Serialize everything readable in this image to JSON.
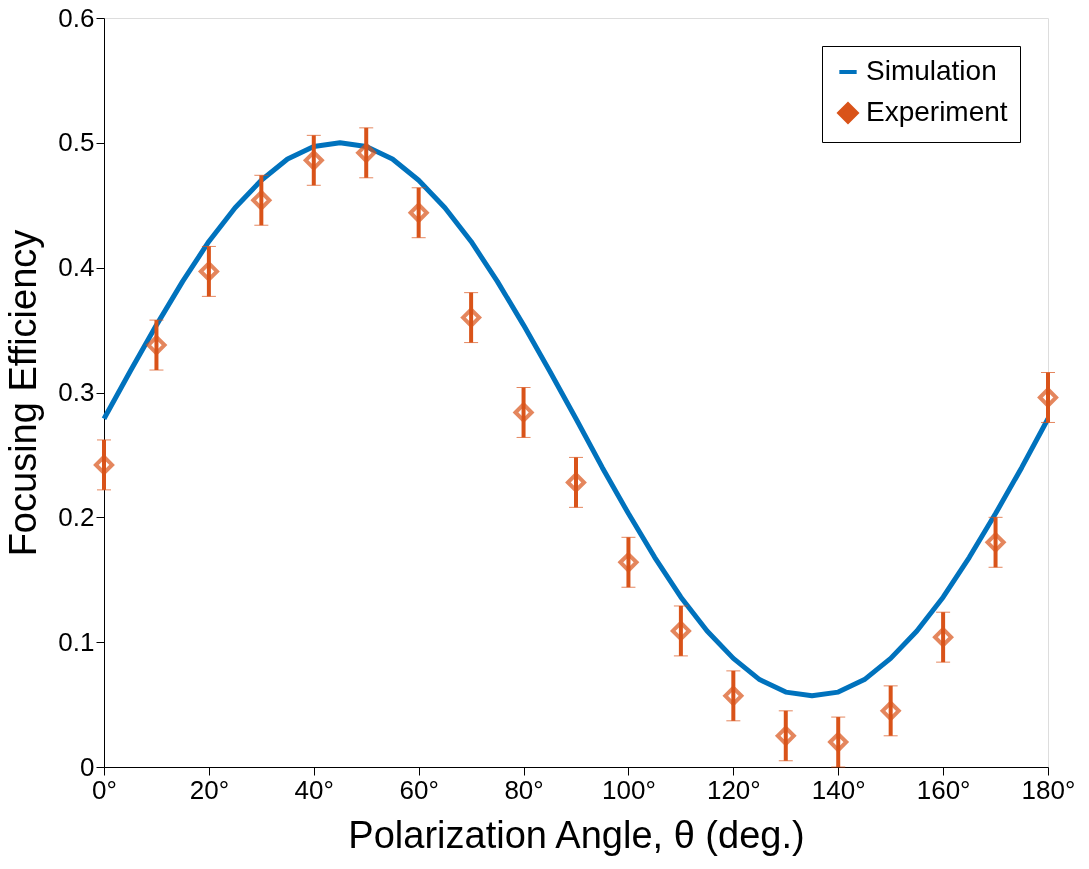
{
  "chart_data": {
    "type": "line",
    "xlabel": "Polarization Angle, θ (deg.)",
    "ylabel": "Focusing Efficiency",
    "x": [
      0,
      5,
      10,
      15,
      20,
      25,
      30,
      35,
      40,
      45,
      50,
      55,
      60,
      65,
      70,
      75,
      80,
      85,
      90,
      95,
      100,
      105,
      110,
      115,
      120,
      125,
      130,
      135,
      140,
      145,
      150,
      155,
      160,
      165,
      170,
      175,
      180
    ],
    "series": [
      {
        "name": "Simulation",
        "type": "line",
        "color": "#0072bd",
        "marker": "none",
        "line_style": "solid",
        "values": [
          0.279,
          0.317,
          0.354,
          0.389,
          0.421,
          0.448,
          0.47,
          0.487,
          0.497,
          0.5,
          0.497,
          0.487,
          0.47,
          0.448,
          0.421,
          0.389,
          0.354,
          0.317,
          0.279,
          0.24,
          0.203,
          0.168,
          0.136,
          0.109,
          0.087,
          0.07,
          0.06,
          0.057,
          0.06,
          0.07,
          0.087,
          0.109,
          0.136,
          0.168,
          0.203,
          0.24,
          0.279
        ]
      },
      {
        "name": "Experiment",
        "type": "scatter",
        "color": "#d95319",
        "marker": "diamond",
        "x": [
          0,
          10,
          20,
          30,
          40,
          50,
          60,
          70,
          80,
          90,
          100,
          110,
          120,
          130,
          140,
          150,
          160,
          170,
          180
        ],
        "values": [
          0.242,
          0.338,
          0.397,
          0.454,
          0.486,
          0.492,
          0.444,
          0.36,
          0.284,
          0.228,
          0.164,
          0.109,
          0.057,
          0.025,
          0.02,
          0.045,
          0.104,
          0.18,
          0.296
        ],
        "errors": [
          0.02,
          0.02,
          0.02,
          0.02,
          0.02,
          0.02,
          0.02,
          0.02,
          0.02,
          0.02,
          0.02,
          0.02,
          0.02,
          0.02,
          0.02,
          0.02,
          0.02,
          0.02,
          0.02
        ]
      }
    ],
    "xlim": [
      0,
      180
    ],
    "ylim": [
      0,
      0.6
    ],
    "xticks": [
      {
        "value": 0,
        "label": "0°"
      },
      {
        "value": 20,
        "label": "20°"
      },
      {
        "value": 40,
        "label": "40°"
      },
      {
        "value": 60,
        "label": "60°"
      },
      {
        "value": 80,
        "label": "80°"
      },
      {
        "value": 100,
        "label": "100°"
      },
      {
        "value": 120,
        "label": "120°"
      },
      {
        "value": 140,
        "label": "140°"
      },
      {
        "value": 160,
        "label": "160°"
      },
      {
        "value": 180,
        "label": "180°"
      }
    ],
    "yticks": [
      0,
      0.1,
      0.2,
      0.3,
      0.4,
      0.5,
      0.6
    ],
    "grid": false,
    "legend": "top right"
  }
}
